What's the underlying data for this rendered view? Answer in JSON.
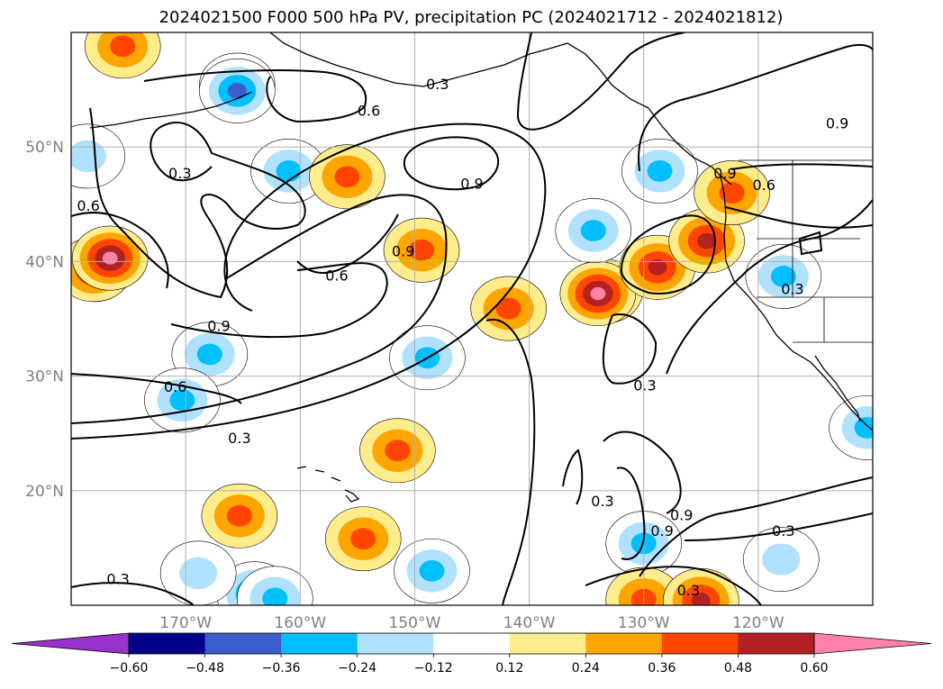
{
  "chart_data": {
    "type": "contour map",
    "title": "2024021500 F000 500 hPa PV, precipitation PC (2024021712 - 2024021812)",
    "map": {
      "lon_range": [
        -180,
        -110
      ],
      "lat_range": [
        10,
        60
      ],
      "xticks": [
        {
          "value": -170,
          "label": "170°W"
        },
        {
          "value": -160,
          "label": "160°W"
        },
        {
          "value": -150,
          "label": "150°W"
        },
        {
          "value": -140,
          "label": "140°W"
        },
        {
          "value": -130,
          "label": "130°W"
        },
        {
          "value": -120,
          "label": "120°W"
        }
      ],
      "yticks": [
        {
          "value": 50,
          "label": "50°N"
        },
        {
          "value": 40,
          "label": "40°N"
        },
        {
          "value": 30,
          "label": "30°N"
        },
        {
          "value": 20,
          "label": "20°N"
        }
      ],
      "grid": true
    },
    "pv_contour_labels": [
      {
        "text": "0.3",
        "lon": -170.5,
        "lat": 47.6
      },
      {
        "text": "0.6",
        "lon": -178.5,
        "lat": 44.8
      },
      {
        "text": "0.6",
        "lon": -154.0,
        "lat": 53.1
      },
      {
        "text": "0.3",
        "lon": -148.0,
        "lat": 55.4
      },
      {
        "text": "0.9",
        "lon": -145.0,
        "lat": 46.7
      },
      {
        "text": "0.9",
        "lon": -151.0,
        "lat": 40.8
      },
      {
        "text": "0.6",
        "lon": -156.8,
        "lat": 38.7
      },
      {
        "text": "0.9",
        "lon": -167.1,
        "lat": 34.3
      },
      {
        "text": "0.6",
        "lon": -170.9,
        "lat": 29.0
      },
      {
        "text": "0.3",
        "lon": -165.3,
        "lat": 24.5
      },
      {
        "text": "0.3",
        "lon": -129.9,
        "lat": 29.1
      },
      {
        "text": "0.3",
        "lon": -133.6,
        "lat": 19.0
      },
      {
        "text": "0.9",
        "lon": -128.4,
        "lat": 16.4
      },
      {
        "text": "0.9",
        "lon": -126.7,
        "lat": 17.8
      },
      {
        "text": "0.3",
        "lon": -117.8,
        "lat": 16.4
      },
      {
        "text": "0.3",
        "lon": -175.9,
        "lat": 12.2
      },
      {
        "text": "0.3",
        "lon": -126.1,
        "lat": 11.2
      },
      {
        "text": "0.6",
        "lon": -119.5,
        "lat": 46.6
      },
      {
        "text": "0.9",
        "lon": -122.9,
        "lat": 47.6
      },
      {
        "text": "0.9",
        "lon": -113.1,
        "lat": 52.0
      },
      {
        "text": "0.3",
        "lon": -117.0,
        "lat": 37.5
      }
    ],
    "precip_blobs": [
      {
        "lon": -178.0,
        "lat": 39.3,
        "level": 0.48
      },
      {
        "lon": -176.6,
        "lat": 40.3,
        "level": 0.6
      },
      {
        "lon": -175.5,
        "lat": 58.8,
        "level": 0.36
      },
      {
        "lon": -165.5,
        "lat": 55.4,
        "level": -0.36
      },
      {
        "lon": -165.5,
        "lat": 54.9,
        "level": -0.48
      },
      {
        "lon": -178.6,
        "lat": 49.2,
        "level": -0.24
      },
      {
        "lon": -161.0,
        "lat": 47.9,
        "level": -0.36
      },
      {
        "lon": -167.9,
        "lat": 31.9,
        "level": -0.36
      },
      {
        "lon": -170.3,
        "lat": 27.9,
        "level": -0.36
      },
      {
        "lon": -155.9,
        "lat": 47.4,
        "level": 0.36
      },
      {
        "lon": -149.4,
        "lat": 41.0,
        "level": 0.36
      },
      {
        "lon": -148.9,
        "lat": 31.6,
        "level": -0.36
      },
      {
        "lon": -141.8,
        "lat": 35.9,
        "level": 0.36
      },
      {
        "lon": -151.5,
        "lat": 23.5,
        "level": 0.36
      },
      {
        "lon": -165.3,
        "lat": 17.8,
        "level": 0.36
      },
      {
        "lon": -154.5,
        "lat": 15.8,
        "level": 0.36
      },
      {
        "lon": -148.5,
        "lat": 13.0,
        "level": -0.36
      },
      {
        "lon": -164.0,
        "lat": 11.0,
        "level": -0.48
      },
      {
        "lon": -162.2,
        "lat": 10.6,
        "level": -0.36
      },
      {
        "lon": -168.9,
        "lat": 12.8,
        "level": -0.24
      },
      {
        "lon": -133.4,
        "lat": 37.4,
        "level": 0.48
      },
      {
        "lon": -134.0,
        "lat": 37.2,
        "level": 0.6
      },
      {
        "lon": -128.8,
        "lat": 39.5,
        "level": 0.48
      },
      {
        "lon": -124.5,
        "lat": 41.8,
        "level": 0.48
      },
      {
        "lon": -122.3,
        "lat": 46.0,
        "level": 0.36
      },
      {
        "lon": -128.6,
        "lat": 47.9,
        "level": -0.36
      },
      {
        "lon": -134.4,
        "lat": 42.7,
        "level": -0.36
      },
      {
        "lon": -130.0,
        "lat": 15.4,
        "level": -0.36
      },
      {
        "lon": -130.0,
        "lat": 10.5,
        "level": 0.36
      },
      {
        "lon": -125.0,
        "lat": 10.4,
        "level": 0.48
      },
      {
        "lon": -118.0,
        "lat": 14.0,
        "level": -0.24
      },
      {
        "lon": -117.8,
        "lat": 38.7,
        "level": -0.36
      },
      {
        "lon": -110.5,
        "lat": 25.5,
        "level": -0.36
      }
    ],
    "colorbar": {
      "levels": [
        -0.6,
        -0.48,
        -0.36,
        -0.24,
        -0.12,
        0.12,
        0.24,
        0.36,
        0.48,
        0.6
      ],
      "tick_labels": [
        "−0.60",
        "−0.48",
        "−0.36",
        "−0.24",
        "−0.12",
        "0.12",
        "0.24",
        "0.36",
        "0.48",
        "0.60"
      ],
      "colors": [
        "#9932cc",
        "#00008b",
        "#3a5fcd",
        "#00bfff",
        "#b0e2ff",
        "#ffffff",
        "#ffec8b",
        "#ffa500",
        "#ff4500",
        "#b22222",
        "#ff82ab"
      ],
      "extend": "both"
    },
    "line_color": "#000000",
    "grid_color": "#b0b0b0",
    "tick_label_color": "#808080"
  }
}
